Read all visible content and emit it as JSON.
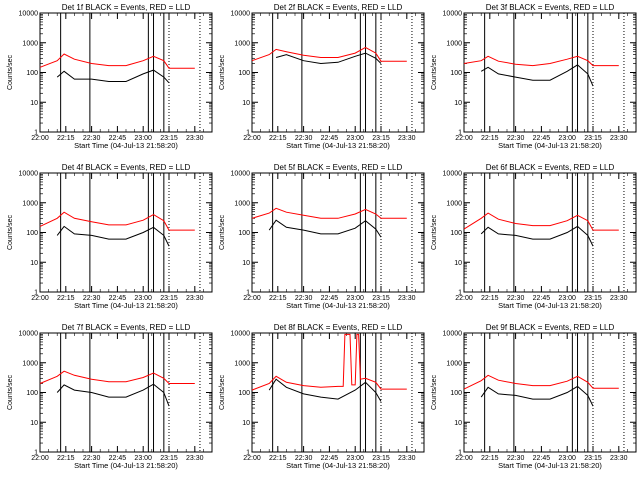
{
  "chart_data": {
    "type": "line",
    "layout": "3x3",
    "y_scale": "log",
    "ylim": [
      1,
      10000
    ],
    "xlim": [
      "22:00",
      "23:40"
    ],
    "ytick_labels": [
      "1",
      "10",
      "100",
      "1000",
      "10000"
    ],
    "xtick_labels": [
      "22:00",
      "22:15",
      "22:30",
      "22:45",
      "23:00",
      "23:15",
      "23:30"
    ],
    "ylabel": "Counts/sec",
    "xlabel": "Start Time (04-Jul-13 21:58:20)",
    "solid_vlines": [
      "22:12",
      "22:29",
      "23:03",
      "23:06",
      "23:12"
    ],
    "dotted_vlines": [
      "23:15",
      "23:33"
    ],
    "panels": [
      {
        "title": "Det 1f BLACK = Events, RED = LLD",
        "series": [
          {
            "name": "Events",
            "color": "#000000",
            "x": [
              "22:10",
              "22:14",
              "22:20",
              "22:30",
              "22:40",
              "22:50",
              "23:00",
              "23:06",
              "23:12",
              "23:15"
            ],
            "y": [
              70,
              110,
              60,
              60,
              50,
              50,
              90,
              120,
              70,
              45
            ]
          },
          {
            "name": "LLD",
            "color": "#ff0000",
            "x": [
              "22:00",
              "22:10",
              "22:14",
              "22:20",
              "22:30",
              "22:40",
              "22:50",
              "23:00",
              "23:06",
              "23:12",
              "23:15",
              "23:30"
            ],
            "y": [
              150,
              250,
              420,
              280,
              200,
              170,
              170,
              250,
              350,
              250,
              140,
              140
            ]
          }
        ]
      },
      {
        "title": "Det 2f BLACK = Events, RED = LLD",
        "series": [
          {
            "name": "Events",
            "color": "#000000",
            "x": [
              "22:14",
              "22:20",
              "22:30",
              "22:40",
              "22:50",
              "23:00",
              "23:06",
              "23:12",
              "23:15"
            ],
            "y": [
              320,
              400,
              250,
              200,
              220,
              350,
              450,
              300,
              200
            ]
          },
          {
            "name": "LLD",
            "color": "#ff0000",
            "x": [
              "22:00",
              "22:10",
              "22:14",
              "22:20",
              "22:30",
              "22:40",
              "22:50",
              "23:00",
              "23:06",
              "23:12",
              "23:15",
              "23:30"
            ],
            "y": [
              250,
              400,
              600,
              500,
              380,
              320,
              320,
              450,
              700,
              450,
              240,
              240
            ]
          }
        ]
      },
      {
        "title": "Det 3f BLACK = Events, RED = LLD",
        "series": [
          {
            "name": "Events",
            "color": "#000000",
            "x": [
              "22:10",
              "22:14",
              "22:20",
              "22:30",
              "22:40",
              "22:50",
              "23:00",
              "23:06",
              "23:12",
              "23:15"
            ],
            "y": [
              110,
              150,
              90,
              70,
              55,
              55,
              110,
              180,
              90,
              35
            ]
          },
          {
            "name": "LLD",
            "color": "#ff0000",
            "x": [
              "22:00",
              "22:10",
              "22:14",
              "22:20",
              "22:30",
              "22:40",
              "22:50",
              "23:00",
              "23:06",
              "23:12",
              "23:15",
              "23:30"
            ],
            "y": [
              200,
              250,
              350,
              240,
              190,
              170,
              200,
              280,
              350,
              250,
              170,
              170
            ]
          }
        ]
      },
      {
        "title": "Det 4f BLACK = Events, RED = LLD",
        "series": [
          {
            "name": "Events",
            "color": "#000000",
            "x": [
              "22:10",
              "22:14",
              "22:20",
              "22:30",
              "22:40",
              "22:50",
              "23:00",
              "23:06",
              "23:12",
              "23:15"
            ],
            "y": [
              80,
              160,
              90,
              80,
              60,
              60,
              100,
              150,
              80,
              35
            ]
          },
          {
            "name": "LLD",
            "color": "#ff0000",
            "x": [
              "22:00",
              "22:10",
              "22:14",
              "22:20",
              "22:30",
              "22:40",
              "22:50",
              "23:00",
              "23:06",
              "23:12",
              "23:15",
              "23:30"
            ],
            "y": [
              160,
              300,
              480,
              300,
              230,
              180,
              180,
              260,
              400,
              250,
              120,
              120
            ]
          }
        ]
      },
      {
        "title": "Det 5f BLACK = Events, RED = LLD",
        "series": [
          {
            "name": "Events",
            "color": "#000000",
            "x": [
              "22:10",
              "22:14",
              "22:20",
              "22:30",
              "22:40",
              "22:50",
              "23:00",
              "23:06",
              "23:12",
              "23:15"
            ],
            "y": [
              120,
              260,
              150,
              120,
              90,
              90,
              140,
              250,
              130,
              70
            ]
          },
          {
            "name": "LLD",
            "color": "#ff0000",
            "x": [
              "22:00",
              "22:10",
              "22:14",
              "22:20",
              "22:30",
              "22:40",
              "22:50",
              "23:00",
              "23:06",
              "23:12",
              "23:15",
              "23:30"
            ],
            "y": [
              300,
              450,
              650,
              480,
              380,
              300,
              300,
              420,
              600,
              420,
              300,
              300
            ]
          }
        ]
      },
      {
        "title": "Det 6f BLACK = Events, RED = LLD",
        "series": [
          {
            "name": "Events",
            "color": "#000000",
            "x": [
              "22:10",
              "22:14",
              "22:20",
              "22:30",
              "22:40",
              "22:50",
              "23:00",
              "23:06",
              "23:12",
              "23:15"
            ],
            "y": [
              90,
              150,
              90,
              80,
              60,
              60,
              100,
              160,
              80,
              35
            ]
          },
          {
            "name": "LLD",
            "color": "#ff0000",
            "x": [
              "22:00",
              "22:10",
              "22:14",
              "22:20",
              "22:30",
              "22:40",
              "22:50",
              "23:00",
              "23:06",
              "23:12",
              "23:15",
              "23:30"
            ],
            "y": [
              130,
              300,
              450,
              280,
              200,
              170,
              170,
              250,
              380,
              250,
              120,
              120
            ]
          }
        ]
      },
      {
        "title": "Det 7f BLACK = Events, RED = LLD",
        "series": [
          {
            "name": "Events",
            "color": "#000000",
            "x": [
              "22:10",
              "22:14",
              "22:20",
              "22:30",
              "22:40",
              "22:50",
              "23:00",
              "23:06",
              "23:12",
              "23:15"
            ],
            "y": [
              100,
              180,
              120,
              100,
              70,
              70,
              120,
              190,
              100,
              35
            ]
          },
          {
            "name": "LLD",
            "color": "#ff0000",
            "x": [
              "22:00",
              "22:10",
              "22:14",
              "22:20",
              "22:30",
              "22:40",
              "22:50",
              "23:00",
              "23:06",
              "23:12",
              "23:15",
              "23:30"
            ],
            "y": [
              200,
              350,
              520,
              380,
              280,
              230,
              230,
              320,
              450,
              300,
              200,
              200
            ]
          }
        ]
      },
      {
        "title": "Det 8f BLACK = Events, RED = LLD",
        "series": [
          {
            "name": "Events",
            "color": "#000000",
            "x": [
              "22:10",
              "22:14",
              "22:20",
              "22:30",
              "22:40",
              "22:50",
              "23:00",
              "23:06",
              "23:12",
              "23:15"
            ],
            "y": [
              120,
              280,
              150,
              90,
              70,
              60,
              120,
              220,
              100,
              50
            ]
          },
          {
            "name": "LLD",
            "color": "#ff0000",
            "x": [
              "22:00",
              "22:10",
              "22:14",
              "22:20",
              "22:30",
              "22:40",
              "22:50",
              "22:53",
              "22:54",
              "22:57",
              "22:58",
              "23:00",
              "23:01",
              "23:02",
              "23:03",
              "23:06",
              "23:12",
              "23:15",
              "23:30"
            ],
            "y": [
              120,
              200,
              350,
              220,
              170,
              150,
              160,
              160,
              9000,
              9000,
              180,
              180,
              9000,
              9000,
              280,
              300,
              220,
              130,
              130
            ]
          }
        ]
      },
      {
        "title": "Det 9f BLACK = Events, RED = LLD",
        "series": [
          {
            "name": "Events",
            "color": "#000000",
            "x": [
              "22:10",
              "22:14",
              "22:20",
              "22:30",
              "22:40",
              "22:50",
              "23:00",
              "23:06",
              "23:12",
              "23:15"
            ],
            "y": [
              70,
              150,
              90,
              80,
              60,
              60,
              100,
              160,
              80,
              35
            ]
          },
          {
            "name": "LLD",
            "color": "#ff0000",
            "x": [
              "22:00",
              "22:10",
              "22:14",
              "22:20",
              "22:30",
              "22:40",
              "22:50",
              "23:00",
              "23:06",
              "23:12",
              "23:15",
              "23:30"
            ],
            "y": [
              130,
              250,
              380,
              260,
              200,
              170,
              170,
              240,
              350,
              220,
              140,
              140
            ]
          }
        ]
      }
    ]
  }
}
